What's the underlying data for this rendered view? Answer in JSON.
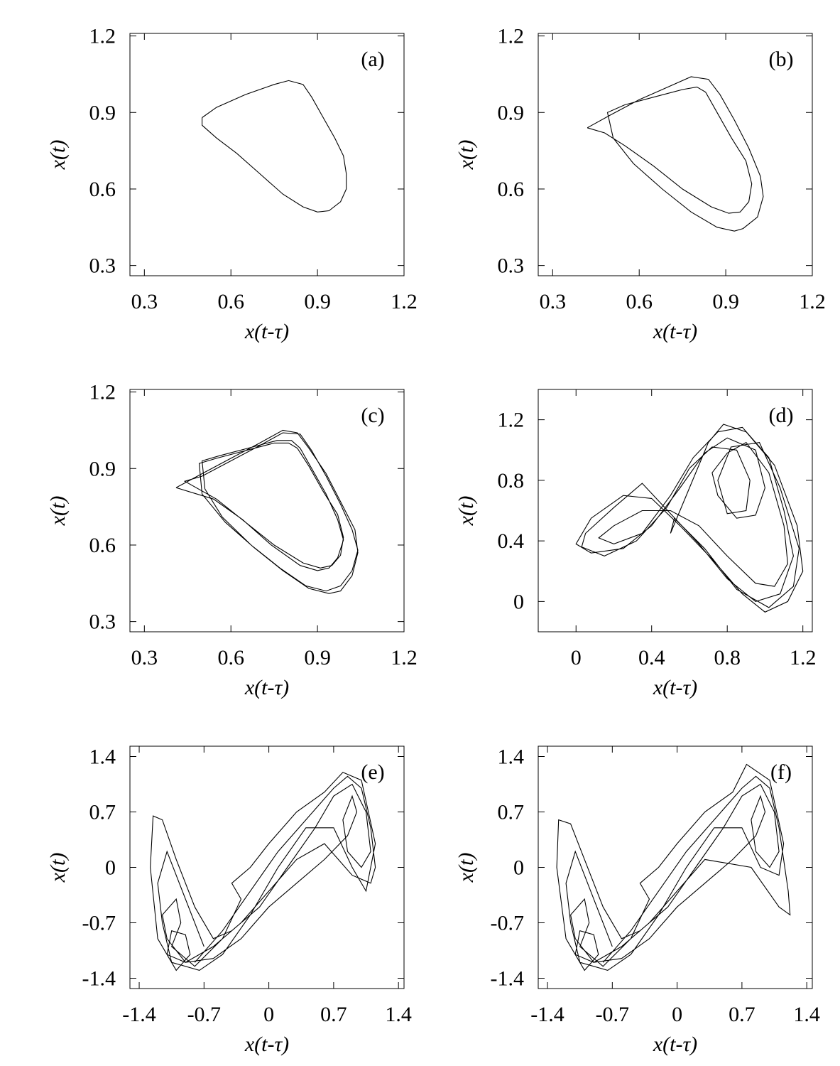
{
  "chart_data": [
    {
      "type": "line",
      "label": "(a)",
      "xlabel": "x(t-τ)",
      "ylabel": "x(t)",
      "color": "#000000",
      "xlim": [
        0.25,
        1.2
      ],
      "ylim": [
        0.26,
        1.21
      ],
      "xticks": [
        0.3,
        0.6,
        0.9,
        1.2
      ],
      "yticks": [
        0.3,
        0.6,
        0.9,
        1.2
      ],
      "x": [
        0.5,
        0.55,
        0.65,
        0.75,
        0.8,
        0.85,
        0.88,
        0.92,
        0.96,
        0.99,
        1.0,
        1.0,
        0.98,
        0.94,
        0.9,
        0.85,
        0.78,
        0.7,
        0.62,
        0.55,
        0.5,
        0.5
      ],
      "values": [
        0.88,
        0.92,
        0.97,
        1.01,
        1.025,
        1.01,
        0.96,
        0.88,
        0.8,
        0.73,
        0.66,
        0.6,
        0.55,
        0.515,
        0.51,
        0.53,
        0.58,
        0.66,
        0.74,
        0.8,
        0.85,
        0.88
      ]
    },
    {
      "type": "line",
      "label": "(b)",
      "xlabel": "x(t-τ)",
      "ylabel": "x(t)",
      "color": "#000000",
      "xlim": [
        0.25,
        1.2
      ],
      "ylim": [
        0.26,
        1.21
      ],
      "xticks": [
        0.3,
        0.6,
        0.9,
        1.2
      ],
      "yticks": [
        0.3,
        0.6,
        0.9,
        1.2
      ],
      "x": [
        0.42,
        0.5,
        0.6,
        0.7,
        0.78,
        0.84,
        0.88,
        0.93,
        0.98,
        1.02,
        1.03,
        1.01,
        0.96,
        0.93,
        0.87,
        0.78,
        0.68,
        0.58,
        0.51,
        0.49,
        0.55,
        0.65,
        0.75,
        0.8,
        0.83,
        0.87,
        0.92,
        0.97,
        0.99,
        0.98,
        0.95,
        0.91,
        0.85,
        0.75,
        0.65,
        0.55,
        0.48,
        0.42
      ],
      "values": [
        0.84,
        0.89,
        0.95,
        1.0,
        1.04,
        1.03,
        0.97,
        0.87,
        0.76,
        0.65,
        0.57,
        0.49,
        0.445,
        0.435,
        0.45,
        0.51,
        0.6,
        0.7,
        0.8,
        0.9,
        0.93,
        0.96,
        0.99,
        1.0,
        0.98,
        0.9,
        0.8,
        0.71,
        0.62,
        0.55,
        0.51,
        0.505,
        0.53,
        0.6,
        0.69,
        0.77,
        0.82,
        0.84
      ]
    },
    {
      "type": "line",
      "label": "(c)",
      "xlabel": "x(t-τ)",
      "ylabel": "x(t)",
      "color": "#000000",
      "xlim": [
        0.25,
        1.2
      ],
      "ylim": [
        0.26,
        1.21
      ],
      "xticks": [
        0.3,
        0.6,
        0.9,
        1.2
      ],
      "yticks": [
        0.3,
        0.6,
        0.9,
        1.2
      ],
      "x": [
        0.41,
        0.5,
        0.6,
        0.7,
        0.78,
        0.83,
        0.87,
        0.93,
        0.98,
        1.03,
        1.04,
        1.02,
        0.98,
        0.94,
        0.87,
        0.78,
        0.68,
        0.58,
        0.5,
        0.49,
        0.55,
        0.65,
        0.75,
        0.8,
        0.83,
        0.87,
        0.92,
        0.97,
        0.99,
        0.98,
        0.95,
        0.91,
        0.85,
        0.75,
        0.65,
        0.55,
        0.44,
        0.5,
        0.6,
        0.7,
        0.78,
        0.84,
        0.88,
        0.93,
        0.98,
        1.02,
        1.04,
        1.02,
        0.98,
        0.93,
        0.86,
        0.77,
        0.67,
        0.57,
        0.51,
        0.5,
        0.56,
        0.66,
        0.76,
        0.81,
        0.84,
        0.88,
        0.93,
        0.97,
        0.99,
        0.97,
        0.94,
        0.9,
        0.84,
        0.74,
        0.64,
        0.54,
        0.41
      ],
      "values": [
        0.825,
        0.88,
        0.94,
        1.0,
        1.05,
        1.04,
        0.98,
        0.88,
        0.77,
        0.66,
        0.57,
        0.48,
        0.42,
        0.41,
        0.43,
        0.5,
        0.59,
        0.69,
        0.8,
        0.92,
        0.94,
        0.97,
        1.0,
        1.0,
        0.98,
        0.91,
        0.81,
        0.72,
        0.63,
        0.56,
        0.52,
        0.51,
        0.53,
        0.6,
        0.69,
        0.78,
        0.85,
        0.87,
        0.93,
        0.99,
        1.04,
        1.035,
        0.97,
        0.87,
        0.76,
        0.66,
        0.58,
        0.5,
        0.44,
        0.42,
        0.44,
        0.51,
        0.6,
        0.71,
        0.82,
        0.93,
        0.95,
        0.98,
        1.01,
        1.01,
        0.98,
        0.9,
        0.8,
        0.7,
        0.62,
        0.55,
        0.51,
        0.5,
        0.52,
        0.6,
        0.7,
        0.78,
        0.825
      ]
    },
    {
      "type": "line",
      "label": "(d)",
      "xlabel": "x(t-τ)",
      "ylabel": "x(t)",
      "color": "#000000",
      "xlim": [
        -0.2,
        1.25
      ],
      "ylim": [
        -0.2,
        1.4
      ],
      "xticks": [
        0,
        0.4,
        0.8,
        1.2
      ],
      "yticks": [
        0,
        0.4,
        0.8,
        1.2
      ],
      "x": [
        0.5,
        0.6,
        0.7,
        0.78,
        0.9,
        1.05,
        1.17,
        1.2,
        1.12,
        1.0,
        0.88,
        0.72,
        0.55,
        0.4,
        0.25,
        0.08,
        0.0,
        0.08,
        0.25,
        0.4,
        0.55,
        0.68,
        0.8,
        0.95,
        1.0,
        0.95,
        0.85,
        0.75,
        0.72,
        0.8,
        0.9,
        1.02,
        1.1,
        1.12,
        1.05,
        0.95,
        0.8,
        0.65,
        0.5,
        0.35,
        0.2,
        0.12,
        0.2,
        0.35,
        0.5,
        0.62,
        0.75,
        0.88,
        1.02,
        1.1,
        1.15,
        1.08,
        0.95,
        0.8,
        0.65,
        0.5,
        0.35,
        0.2,
        0.05,
        0.03,
        0.15,
        0.32,
        0.48,
        0.6,
        0.72,
        0.85,
        0.92,
        0.9,
        0.8,
        0.75,
        0.82,
        0.97,
        1.08,
        1.18,
        1.15,
        1.02,
        0.85,
        0.68,
        0.52,
        0.5
      ],
      "values": [
        0.45,
        0.75,
        1.05,
        1.17,
        1.12,
        0.9,
        0.5,
        0.2,
        0.0,
        -0.07,
        0.05,
        0.28,
        0.5,
        0.68,
        0.7,
        0.55,
        0.38,
        0.32,
        0.35,
        0.5,
        0.75,
        0.98,
        1.08,
        1.0,
        0.75,
        0.57,
        0.55,
        0.7,
        0.85,
        0.98,
        1.05,
        0.85,
        0.5,
        0.25,
        0.1,
        0.12,
        0.3,
        0.5,
        0.6,
        0.6,
        0.5,
        0.42,
        0.38,
        0.45,
        0.7,
        0.95,
        1.12,
        1.15,
        0.95,
        0.6,
        0.3,
        0.05,
        0.0,
        0.15,
        0.38,
        0.58,
        0.78,
        0.62,
        0.45,
        0.36,
        0.3,
        0.4,
        0.62,
        0.88,
        1.02,
        1.0,
        0.8,
        0.6,
        0.58,
        0.8,
        1.02,
        1.05,
        0.75,
        0.35,
        0.1,
        -0.04,
        0.08,
        0.35,
        0.55,
        0.45
      ]
    },
    {
      "type": "line",
      "label": "(e)",
      "xlabel": "x(t-τ)",
      "ylabel": "x(t)",
      "color": "#000000",
      "xlim": [
        -1.5,
        1.46
      ],
      "ylim": [
        -1.53,
        1.53
      ],
      "xticks": [
        -1.4,
        -0.7,
        0,
        0.7,
        1.4
      ],
      "yticks": [
        -1.4,
        -0.7,
        0,
        0.7,
        1.4
      ],
      "x": [
        -0.8,
        -0.5,
        -0.2,
        0.1,
        0.4,
        0.7,
        0.85,
        1.0,
        1.1,
        1.15,
        1.1,
        0.9,
        0.6,
        0.3,
        0.0,
        -0.3,
        -0.6,
        -0.9,
        -1.1,
        -1.05,
        -0.9,
        -0.85,
        -1.0,
        -1.2,
        -1.28,
        -1.25,
        -1.15,
        -1.0,
        -0.8,
        -0.6,
        -0.4,
        -0.1,
        0.2,
        0.5,
        0.7,
        0.9,
        1.05,
        1.1,
        1.0,
        0.85,
        0.8,
        0.9,
        0.95,
        0.85,
        0.6,
        0.3,
        0.0,
        -0.3,
        -0.6,
        -0.9,
        -1.1,
        -1.15,
        -1.0,
        -0.95,
        -1.05,
        -0.8,
        -0.5,
        -0.3,
        -0.4,
        -0.2,
        0.0,
        0.3,
        0.6,
        0.8,
        1.0,
        1.15,
        1.05,
        0.9,
        0.7,
        0.4,
        0.1,
        -0.2,
        -0.5,
        -0.75,
        -1.05,
        -1.15,
        -1.2,
        -1.1,
        -0.9,
        -0.7
      ],
      "values": [
        -1.2,
        -0.8,
        -0.3,
        0.2,
        0.6,
        1.0,
        1.15,
        1.0,
        0.5,
        0.0,
        -0.2,
        -0.1,
        0.3,
        0.1,
        -0.3,
        -0.7,
        -1.0,
        -1.2,
        -1.1,
        -0.8,
        -0.85,
        -1.1,
        -1.3,
        -0.9,
        0.0,
        0.65,
        0.6,
        0.1,
        -0.5,
        -0.9,
        -0.8,
        -0.5,
        0.0,
        0.5,
        0.9,
        1.05,
        0.7,
        0.2,
        0.0,
        0.2,
        0.6,
        0.9,
        0.7,
        0.4,
        0.1,
        -0.2,
        -0.5,
        -0.9,
        -1.15,
        -1.2,
        -0.9,
        -0.6,
        -0.4,
        -0.7,
        -1.0,
        -1.25,
        -0.9,
        -0.4,
        -0.2,
        0.0,
        0.3,
        0.7,
        0.95,
        1.2,
        1.1,
        0.3,
        -0.3,
        0.0,
        0.5,
        0.5,
        0.0,
        -0.6,
        -1.1,
        -1.3,
        -1.2,
        -0.7,
        -0.2,
        0.2,
        -0.4,
        -1.0
      ]
    },
    {
      "type": "line",
      "label": "(f)",
      "xlabel": "x(t-τ)",
      "ylabel": "x(t)",
      "color": "#000000",
      "xlim": [
        -1.5,
        1.46
      ],
      "ylim": [
        -1.53,
        1.53
      ],
      "xticks": [
        -1.4,
        -0.7,
        0,
        0.7,
        1.4
      ],
      "yticks": [
        -1.4,
        -0.7,
        0,
        0.7,
        1.4
      ],
      "x": [
        -0.8,
        -0.5,
        -0.2,
        0.1,
        0.4,
        0.7,
        0.85,
        1.0,
        1.1,
        1.2,
        1.22,
        1.1,
        0.8,
        0.3,
        0.0,
        -0.3,
        -0.6,
        -0.9,
        -1.1,
        -1.05,
        -0.9,
        -0.85,
        -1.0,
        -1.2,
        -1.3,
        -1.28,
        -1.15,
        -1.0,
        -0.8,
        -0.6,
        -0.4,
        -0.1,
        0.2,
        0.5,
        0.7,
        0.9,
        1.05,
        1.1,
        1.0,
        0.85,
        0.8,
        0.9,
        0.95,
        0.85,
        0.6,
        0.3,
        0.0,
        -0.3,
        -0.6,
        -0.9,
        -1.1,
        -1.15,
        -1.0,
        -0.95,
        -1.05,
        -0.8,
        -0.5,
        -0.3,
        -0.4,
        -0.2,
        0.0,
        0.3,
        0.6,
        0.75,
        1.0,
        1.15,
        1.1,
        0.9,
        0.7,
        0.4,
        0.1,
        -0.2,
        -0.5,
        -0.75,
        -1.05,
        -1.15,
        -1.2,
        -1.1,
        -0.9,
        -0.7
      ],
      "values": [
        -1.2,
        -0.8,
        -0.3,
        0.2,
        0.6,
        1.0,
        1.15,
        1.0,
        0.5,
        -0.3,
        -0.6,
        -0.5,
        0.0,
        0.1,
        -0.3,
        -0.7,
        -1.0,
        -1.2,
        -1.1,
        -0.8,
        -0.85,
        -1.1,
        -1.3,
        -0.9,
        0.0,
        0.6,
        0.55,
        0.1,
        -0.5,
        -0.9,
        -0.8,
        -0.5,
        0.0,
        0.5,
        0.9,
        1.05,
        0.7,
        0.2,
        0.0,
        0.2,
        0.6,
        0.9,
        0.7,
        0.4,
        0.1,
        -0.2,
        -0.5,
        -0.9,
        -1.15,
        -1.2,
        -0.9,
        -0.6,
        -0.4,
        -0.7,
        -1.0,
        -1.25,
        -0.9,
        -0.4,
        -0.2,
        0.0,
        0.3,
        0.7,
        0.95,
        1.3,
        1.1,
        0.3,
        -0.1,
        0.0,
        0.5,
        0.5,
        0.0,
        -0.6,
        -1.1,
        -1.3,
        -1.2,
        -0.7,
        -0.2,
        0.2,
        -0.4,
        -1.0
      ]
    }
  ]
}
